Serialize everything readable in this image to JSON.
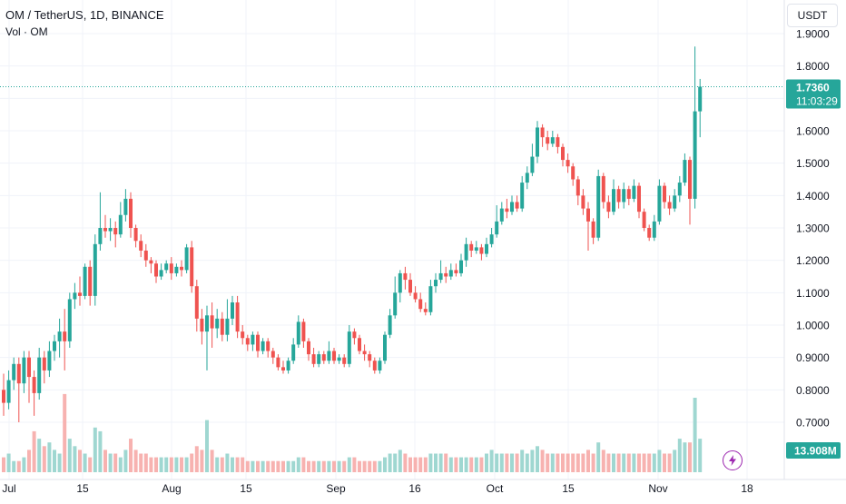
{
  "legend": {
    "title": "OM / TetherUS, 1D, BINANCE",
    "volume": "Vol · OM"
  },
  "currency_button": "USDT",
  "price_tag": {
    "price": "1.7360",
    "countdown": "11:03:29"
  },
  "volume_tag": "13.908M",
  "colors": {
    "up": "#26a69a",
    "down": "#ef5350",
    "up_vol": "#9fd7d1",
    "down_vol": "#f7b2b0",
    "flash": "#9c27b0"
  },
  "icons": {
    "flash": "lightning-icon"
  },
  "chart_data": {
    "type": "candlestick",
    "symbol": "OM / TetherUS",
    "interval": "1D",
    "exchange": "BINANCE",
    "y_axis": {
      "ticks": [
        "1.9000",
        "1.8000",
        "1.7000",
        "1.6000",
        "1.5000",
        "1.4000",
        "1.3000",
        "1.2000",
        "1.1000",
        "1.0000",
        "0.9000",
        "0.8000",
        "0.7000"
      ],
      "range": [
        0.63,
        1.92
      ]
    },
    "x_axis": {
      "ticks": [
        "Jul",
        "15",
        "Aug",
        "15",
        "Sep",
        "16",
        "Oct",
        "15",
        "Nov",
        "18"
      ]
    },
    "last_price": 1.736,
    "last_volume": "13.908M",
    "candles": [
      [
        0.8,
        0.76,
        0.85,
        0.72,
        4
      ],
      [
        0.76,
        0.83,
        0.86,
        0.74,
        5
      ],
      [
        0.83,
        0.88,
        0.9,
        0.8,
        3
      ],
      [
        0.88,
        0.82,
        0.9,
        0.7,
        3
      ],
      [
        0.82,
        0.9,
        0.92,
        0.79,
        4
      ],
      [
        0.9,
        0.84,
        0.92,
        0.76,
        6
      ],
      [
        0.84,
        0.79,
        0.86,
        0.72,
        11
      ],
      [
        0.79,
        0.9,
        0.93,
        0.77,
        9
      ],
      [
        0.9,
        0.86,
        0.92,
        0.82,
        7
      ],
      [
        0.86,
        0.92,
        0.95,
        0.84,
        8
      ],
      [
        0.92,
        0.95,
        0.97,
        0.89,
        6
      ],
      [
        0.95,
        0.98,
        1.02,
        0.9,
        5
      ],
      [
        0.98,
        0.95,
        1.05,
        0.86,
        21
      ],
      [
        0.95,
        1.08,
        1.1,
        0.93,
        9
      ],
      [
        1.08,
        1.1,
        1.13,
        1.05,
        7
      ],
      [
        1.1,
        1.09,
        1.15,
        1.06,
        6
      ],
      [
        1.09,
        1.18,
        1.19,
        1.08,
        5
      ],
      [
        1.18,
        1.09,
        1.2,
        1.06,
        4
      ],
      [
        1.09,
        1.25,
        1.28,
        1.06,
        12
      ],
      [
        1.25,
        1.3,
        1.41,
        1.23,
        11
      ],
      [
        1.3,
        1.29,
        1.34,
        1.27,
        6
      ],
      [
        1.29,
        1.3,
        1.33,
        1.26,
        5
      ],
      [
        1.3,
        1.28,
        1.32,
        1.24,
        5
      ],
      [
        1.28,
        1.34,
        1.38,
        1.27,
        4
      ],
      [
        1.34,
        1.39,
        1.42,
        1.32,
        6
      ],
      [
        1.39,
        1.3,
        1.41,
        1.27,
        9
      ],
      [
        1.3,
        1.26,
        1.31,
        1.24,
        6
      ],
      [
        1.26,
        1.23,
        1.28,
        1.21,
        5
      ],
      [
        1.23,
        1.2,
        1.25,
        1.18,
        5
      ],
      [
        1.2,
        1.19,
        1.21,
        1.16,
        4
      ],
      [
        1.19,
        1.15,
        1.2,
        1.13,
        4
      ],
      [
        1.15,
        1.17,
        1.19,
        1.14,
        4
      ],
      [
        1.17,
        1.19,
        1.2,
        1.16,
        4
      ],
      [
        1.19,
        1.16,
        1.21,
        1.14,
        4
      ],
      [
        1.16,
        1.18,
        1.19,
        1.15,
        4
      ],
      [
        1.18,
        1.17,
        1.2,
        1.15,
        4
      ],
      [
        1.17,
        1.24,
        1.25,
        1.16,
        4
      ],
      [
        1.24,
        1.12,
        1.26,
        1.1,
        5
      ],
      [
        1.12,
        1.02,
        1.14,
        0.98,
        7
      ],
      [
        1.02,
        0.98,
        1.05,
        0.94,
        6
      ],
      [
        0.98,
        1.03,
        1.06,
        0.86,
        14
      ],
      [
        1.03,
        0.99,
        1.07,
        0.93,
        6
      ],
      [
        0.99,
        1.02,
        1.05,
        0.96,
        4
      ],
      [
        1.02,
        0.97,
        1.04,
        0.95,
        4
      ],
      [
        0.97,
        1.02,
        1.08,
        0.95,
        5
      ],
      [
        1.02,
        1.07,
        1.09,
        1.0,
        4
      ],
      [
        1.07,
        0.98,
        1.09,
        0.96,
        4
      ],
      [
        0.98,
        0.96,
        1.0,
        0.94,
        4
      ],
      [
        0.96,
        0.94,
        0.97,
        0.92,
        3
      ],
      [
        0.94,
        0.97,
        0.98,
        0.92,
        3
      ],
      [
        0.97,
        0.92,
        0.98,
        0.9,
        3
      ],
      [
        0.92,
        0.95,
        0.96,
        0.91,
        3
      ],
      [
        0.95,
        0.92,
        0.96,
        0.9,
        3
      ],
      [
        0.92,
        0.9,
        0.93,
        0.88,
        3
      ],
      [
        0.9,
        0.87,
        0.91,
        0.86,
        3
      ],
      [
        0.87,
        0.86,
        0.89,
        0.85,
        3
      ],
      [
        0.86,
        0.89,
        0.9,
        0.85,
        3
      ],
      [
        0.89,
        0.94,
        0.96,
        0.88,
        3
      ],
      [
        0.94,
        1.01,
        1.03,
        0.93,
        4
      ],
      [
        1.01,
        0.95,
        1.02,
        0.93,
        4
      ],
      [
        0.95,
        0.91,
        0.96,
        0.89,
        3
      ],
      [
        0.91,
        0.88,
        0.93,
        0.87,
        3
      ],
      [
        0.88,
        0.91,
        0.92,
        0.87,
        3
      ],
      [
        0.91,
        0.89,
        0.92,
        0.88,
        3
      ],
      [
        0.89,
        0.92,
        0.95,
        0.88,
        3
      ],
      [
        0.92,
        0.89,
        0.93,
        0.88,
        3
      ],
      [
        0.89,
        0.9,
        0.91,
        0.88,
        3
      ],
      [
        0.9,
        0.88,
        0.91,
        0.87,
        3
      ],
      [
        0.88,
        0.98,
        1.0,
        0.87,
        4
      ],
      [
        0.98,
        0.96,
        0.99,
        0.94,
        4
      ],
      [
        0.96,
        0.92,
        0.97,
        0.91,
        3
      ],
      [
        0.92,
        0.91,
        0.94,
        0.89,
        3
      ],
      [
        0.91,
        0.89,
        0.92,
        0.87,
        3
      ],
      [
        0.89,
        0.86,
        0.9,
        0.85,
        3
      ],
      [
        0.86,
        0.89,
        0.9,
        0.85,
        3
      ],
      [
        0.89,
        0.97,
        0.98,
        0.88,
        4
      ],
      [
        0.97,
        1.03,
        1.05,
        0.96,
        5
      ],
      [
        1.03,
        1.1,
        1.15,
        1.02,
        5
      ],
      [
        1.1,
        1.16,
        1.17,
        1.07,
        6
      ],
      [
        1.16,
        1.14,
        1.18,
        1.11,
        5
      ],
      [
        1.14,
        1.1,
        1.16,
        1.09,
        4
      ],
      [
        1.1,
        1.08,
        1.12,
        1.07,
        4
      ],
      [
        1.08,
        1.05,
        1.1,
        1.04,
        4
      ],
      [
        1.05,
        1.04,
        1.07,
        1.03,
        4
      ],
      [
        1.04,
        1.12,
        1.14,
        1.03,
        5
      ],
      [
        1.12,
        1.14,
        1.16,
        1.1,
        5
      ],
      [
        1.14,
        1.16,
        1.2,
        1.13,
        5
      ],
      [
        1.16,
        1.15,
        1.18,
        1.13,
        5
      ],
      [
        1.15,
        1.17,
        1.19,
        1.14,
        4
      ],
      [
        1.17,
        1.16,
        1.19,
        1.15,
        4
      ],
      [
        1.16,
        1.2,
        1.22,
        1.15,
        4
      ],
      [
        1.2,
        1.25,
        1.27,
        1.18,
        4
      ],
      [
        1.25,
        1.23,
        1.26,
        1.21,
        4
      ],
      [
        1.23,
        1.24,
        1.26,
        1.22,
        4
      ],
      [
        1.24,
        1.22,
        1.25,
        1.2,
        4
      ],
      [
        1.22,
        1.25,
        1.27,
        1.21,
        5
      ],
      [
        1.25,
        1.28,
        1.3,
        1.24,
        6
      ],
      [
        1.28,
        1.32,
        1.37,
        1.27,
        5
      ],
      [
        1.32,
        1.36,
        1.38,
        1.31,
        5
      ],
      [
        1.36,
        1.35,
        1.39,
        1.33,
        5
      ],
      [
        1.35,
        1.38,
        1.4,
        1.34,
        5
      ],
      [
        1.38,
        1.36,
        1.4,
        1.35,
        5
      ],
      [
        1.36,
        1.44,
        1.46,
        1.35,
        6
      ],
      [
        1.44,
        1.47,
        1.49,
        1.42,
        5
      ],
      [
        1.47,
        1.52,
        1.56,
        1.46,
        6
      ],
      [
        1.52,
        1.61,
        1.63,
        1.5,
        7
      ],
      [
        1.61,
        1.58,
        1.62,
        1.55,
        6
      ],
      [
        1.58,
        1.56,
        1.6,
        1.54,
        5
      ],
      [
        1.56,
        1.58,
        1.6,
        1.55,
        5
      ],
      [
        1.58,
        1.55,
        1.59,
        1.53,
        5
      ],
      [
        1.55,
        1.51,
        1.56,
        1.49,
        5
      ],
      [
        1.51,
        1.49,
        1.53,
        1.47,
        5
      ],
      [
        1.49,
        1.45,
        1.5,
        1.43,
        5
      ],
      [
        1.45,
        1.4,
        1.46,
        1.37,
        5
      ],
      [
        1.4,
        1.36,
        1.42,
        1.34,
        5
      ],
      [
        1.36,
        1.32,
        1.38,
        1.23,
        6
      ],
      [
        1.32,
        1.27,
        1.33,
        1.25,
        5
      ],
      [
        1.27,
        1.46,
        1.48,
        1.26,
        8
      ],
      [
        1.46,
        1.38,
        1.47,
        1.36,
        6
      ],
      [
        1.38,
        1.35,
        1.4,
        1.33,
        5
      ],
      [
        1.35,
        1.42,
        1.45,
        1.34,
        5
      ],
      [
        1.42,
        1.38,
        1.43,
        1.36,
        5
      ],
      [
        1.38,
        1.42,
        1.44,
        1.36,
        5
      ],
      [
        1.42,
        1.39,
        1.43,
        1.37,
        5
      ],
      [
        1.39,
        1.43,
        1.45,
        1.38,
        5
      ],
      [
        1.43,
        1.35,
        1.44,
        1.33,
        5
      ],
      [
        1.35,
        1.3,
        1.36,
        1.29,
        5
      ],
      [
        1.3,
        1.27,
        1.31,
        1.26,
        5
      ],
      [
        1.27,
        1.32,
        1.34,
        1.26,
        5
      ],
      [
        1.32,
        1.43,
        1.45,
        1.31,
        6
      ],
      [
        1.43,
        1.38,
        1.44,
        1.36,
        5
      ],
      [
        1.38,
        1.36,
        1.4,
        1.34,
        5
      ],
      [
        1.36,
        1.4,
        1.42,
        1.35,
        6
      ],
      [
        1.4,
        1.44,
        1.46,
        1.38,
        9
      ],
      [
        1.44,
        1.51,
        1.53,
        1.43,
        8
      ],
      [
        1.51,
        1.39,
        1.52,
        1.31,
        8
      ],
      [
        1.39,
        1.66,
        1.86,
        1.36,
        20
      ],
      [
        1.66,
        1.736,
        1.76,
        1.58,
        9
      ]
    ]
  }
}
